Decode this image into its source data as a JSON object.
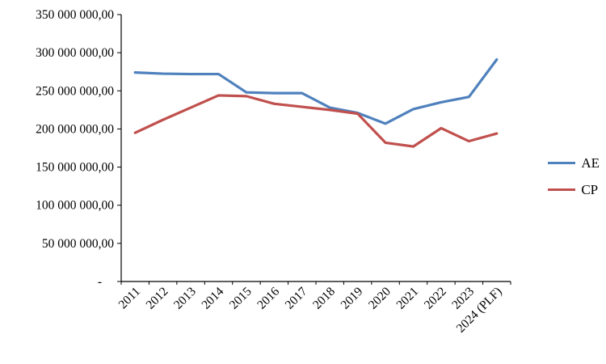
{
  "chart_data": {
    "type": "line",
    "title": "",
    "xlabel": "",
    "ylabel": "",
    "categories": [
      "2011",
      "2012",
      "2013",
      "2014",
      "2015",
      "2016",
      "2017",
      "2018",
      "2019",
      "2020",
      "2021",
      "2022",
      "2023",
      "2024 (PLF)"
    ],
    "series": [
      {
        "name": "AE",
        "color": "#4F81BD",
        "values": [
          274000000,
          272500000,
          272000000,
          272000000,
          248000000,
          247000000,
          247000000,
          228000000,
          221000000,
          207000000,
          226000000,
          235000000,
          242000000,
          291000000
        ]
      },
      {
        "name": "CP",
        "color": "#C0504D",
        "values": [
          195000000,
          212000000,
          228000000,
          244000000,
          243000000,
          233000000,
          229000000,
          225000000,
          220000000,
          182000000,
          177000000,
          201000000,
          184000000,
          194000000
        ]
      }
    ],
    "ylim": [
      0,
      350000000
    ],
    "ytick_interval": 50000000,
    "ytick_labels": [
      "-",
      "50 000 000,00",
      "100 000 000,00",
      "150 000 000,00",
      "200 000 000,00",
      "250 000 000,00",
      "300 000 000,00",
      "350 000 000,00"
    ],
    "grid": false,
    "legend_position": "right",
    "axis_color": "#000000",
    "text_color": "#000000"
  }
}
